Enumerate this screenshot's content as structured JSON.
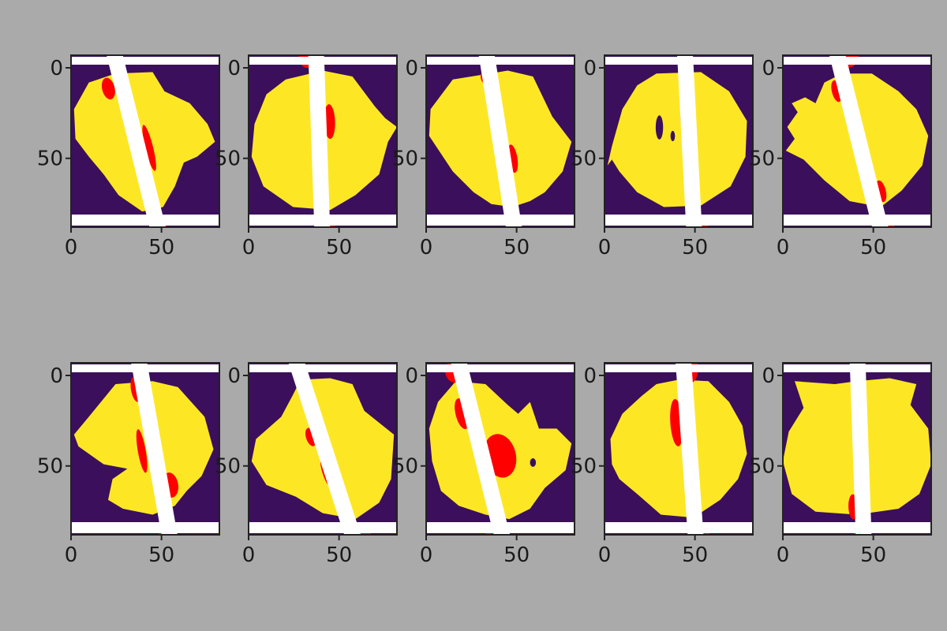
{
  "figure": {
    "background_color": "#aaaaaa",
    "layout": "2 rows x 5 columns grid of image subplots"
  },
  "chart_data": [
    {
      "type": "heatmap",
      "panel": 1,
      "x_ticks": [
        "0",
        "50"
      ],
      "y_ticks": [
        "0",
        "50"
      ],
      "xlim": [
        0,
        82
      ],
      "ylim": [
        90,
        0
      ],
      "line_angle_deg": -14,
      "line_center_x": 36
    },
    {
      "type": "heatmap",
      "panel": 2,
      "x_ticks": [
        "0",
        "50"
      ],
      "y_ticks": [
        "0",
        "50"
      ],
      "xlim": [
        0,
        82
      ],
      "ylim": [
        90,
        0
      ],
      "line_angle_deg": -2,
      "line_center_x": 39
    },
    {
      "type": "heatmap",
      "panel": 3,
      "x_ticks": [
        "0",
        "50"
      ],
      "y_ticks": [
        "0",
        "50"
      ],
      "xlim": [
        0,
        82
      ],
      "ylim": [
        90,
        0
      ],
      "line_angle_deg": -9,
      "line_center_x": 41
    },
    {
      "type": "heatmap",
      "panel": 4,
      "x_ticks": [
        "0",
        "50"
      ],
      "y_ticks": [
        "0",
        "50"
      ],
      "xlim": [
        0,
        82
      ],
      "ylim": [
        90,
        0
      ],
      "line_angle_deg": -3,
      "line_center_x": 47
    },
    {
      "type": "heatmap",
      "panel": 5,
      "x_ticks": [
        "0",
        "50"
      ],
      "y_ticks": [
        "0",
        "50"
      ],
      "xlim": [
        0,
        82
      ],
      "ylim": [
        90,
        0
      ],
      "line_angle_deg": -14,
      "line_center_x": 42
    },
    {
      "type": "heatmap",
      "panel": 6,
      "x_ticks": [
        "0",
        "50"
      ],
      "y_ticks": [
        "0",
        "50"
      ],
      "xlim": [
        0,
        82
      ],
      "ylim": [
        90,
        0
      ],
      "line_angle_deg": -10,
      "line_center_x": 46
    },
    {
      "type": "heatmap",
      "panel": 7,
      "x_ticks": [
        "0",
        "50"
      ],
      "y_ticks": [
        "0",
        "50"
      ],
      "xlim": [
        0,
        82
      ],
      "ylim": [
        90,
        0
      ],
      "line_angle_deg": -18,
      "line_center_x": 42
    },
    {
      "type": "heatmap",
      "panel": 8,
      "x_ticks": [
        "0",
        "50"
      ],
      "y_ticks": [
        "0",
        "50"
      ],
      "xlim": [
        0,
        82
      ],
      "ylim": [
        90,
        0
      ],
      "line_angle_deg": -14,
      "line_center_x": 30
    },
    {
      "type": "heatmap",
      "panel": 9,
      "x_ticks": [
        "0",
        "50"
      ],
      "y_ticks": [
        "0",
        "50"
      ],
      "xlim": [
        0,
        82
      ],
      "ylim": [
        90,
        0
      ],
      "line_angle_deg": -4,
      "line_center_x": 47
    },
    {
      "type": "heatmap",
      "panel": 10,
      "x_ticks": [
        "0",
        "50"
      ],
      "y_ticks": [
        "0",
        "50"
      ],
      "xlim": [
        0,
        82
      ],
      "ylim": [
        90,
        0
      ],
      "line_angle_deg": -2,
      "line_center_x": 43
    }
  ],
  "colors": {
    "background": "#3b0f5c",
    "blob": "#fde725",
    "overlap": "#ff0000",
    "line": "#ffffff",
    "band": "#ffffff",
    "frame": "#222222",
    "tick_text": "#1a1a1a"
  }
}
